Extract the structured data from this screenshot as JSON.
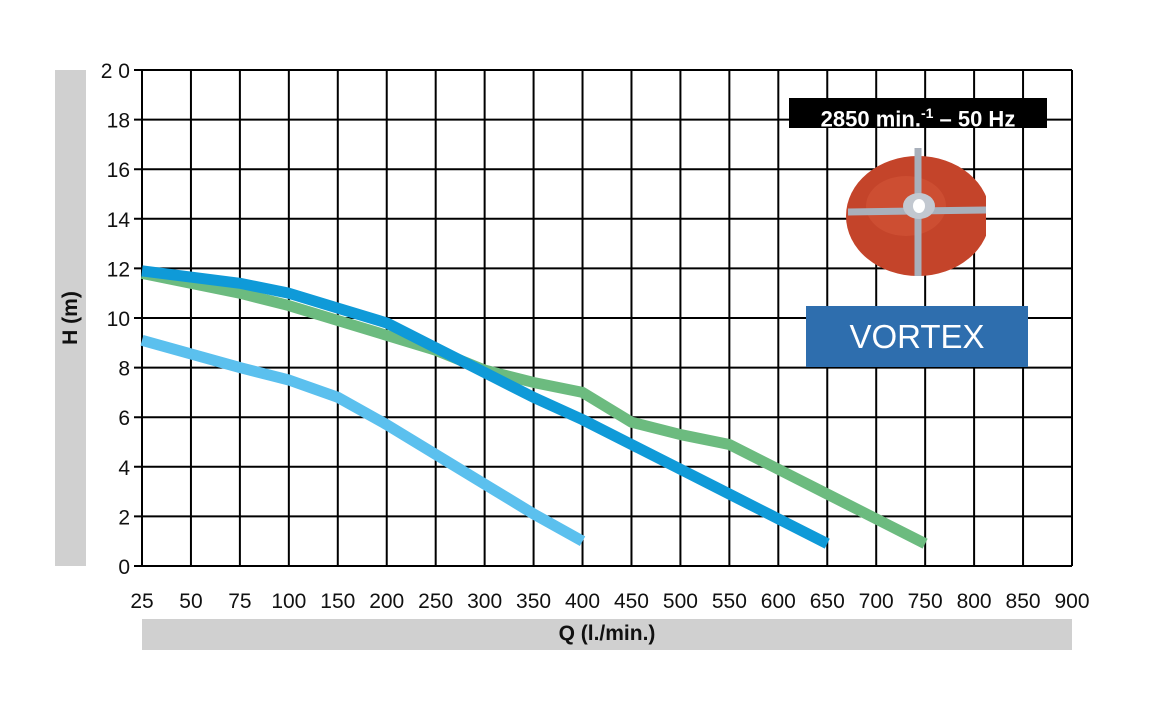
{
  "chart_data": {
    "type": "line",
    "title": "",
    "xlabel": "Q (l./min.)",
    "ylabel": "H (m)",
    "categories": [
      25,
      50,
      75,
      100,
      150,
      200,
      250,
      300,
      350,
      400,
      450,
      500,
      550,
      600,
      650,
      700,
      750,
      800,
      850,
      900
    ],
    "xtick_labels": [
      "25",
      "50",
      "75",
      "100",
      "150",
      "200",
      "250",
      "300",
      "350",
      "400",
      "450",
      "500",
      "550",
      "600",
      "650",
      "700",
      "750",
      "800",
      "850",
      "900"
    ],
    "yticks": [
      0,
      2,
      4,
      6,
      8,
      10,
      12,
      14,
      16,
      18,
      20
    ],
    "ytick_labels": [
      "0",
      "2",
      "4",
      "6",
      "8",
      "10",
      "12",
      "14",
      "16",
      "18",
      "2 0"
    ],
    "ylim": [
      0,
      20
    ],
    "grid": true,
    "series": [
      {
        "name": "light-blue-curve",
        "color": "#5bc0ee",
        "points": [
          [
            25,
            9.1
          ],
          [
            75,
            8.0
          ],
          [
            100,
            7.5
          ],
          [
            150,
            6.8
          ],
          [
            200,
            5.7
          ],
          [
            250,
            4.5
          ],
          [
            300,
            3.3
          ],
          [
            350,
            2.1
          ],
          [
            400,
            1.0
          ]
        ]
      },
      {
        "name": "green-curve",
        "color": "#6cbb7f",
        "points": [
          [
            25,
            11.8
          ],
          [
            75,
            11.0
          ],
          [
            100,
            10.5
          ],
          [
            150,
            9.9
          ],
          [
            200,
            9.3
          ],
          [
            250,
            8.7
          ],
          [
            300,
            7.9
          ],
          [
            350,
            7.4
          ],
          [
            400,
            7.0
          ],
          [
            450,
            5.8
          ],
          [
            500,
            5.3
          ],
          [
            550,
            4.9
          ],
          [
            600,
            3.9
          ],
          [
            650,
            2.9
          ],
          [
            700,
            1.9
          ],
          [
            750,
            0.9
          ]
        ]
      },
      {
        "name": "blue-curve",
        "color": "#0f9ad8",
        "points": [
          [
            25,
            11.9
          ],
          [
            75,
            11.4
          ],
          [
            100,
            11.0
          ],
          [
            150,
            10.4
          ],
          [
            200,
            9.8
          ],
          [
            250,
            8.8
          ],
          [
            300,
            7.8
          ],
          [
            350,
            6.8
          ],
          [
            400,
            5.9
          ],
          [
            450,
            4.9
          ],
          [
            500,
            3.9
          ],
          [
            550,
            2.9
          ],
          [
            600,
            1.9
          ],
          [
            650,
            0.9
          ]
        ]
      }
    ],
    "annotations": {
      "speed_main": "2850 min.",
      "speed_sup": "-1",
      "speed_rest": " – 50 Hz",
      "label": "VORTEX"
    }
  }
}
